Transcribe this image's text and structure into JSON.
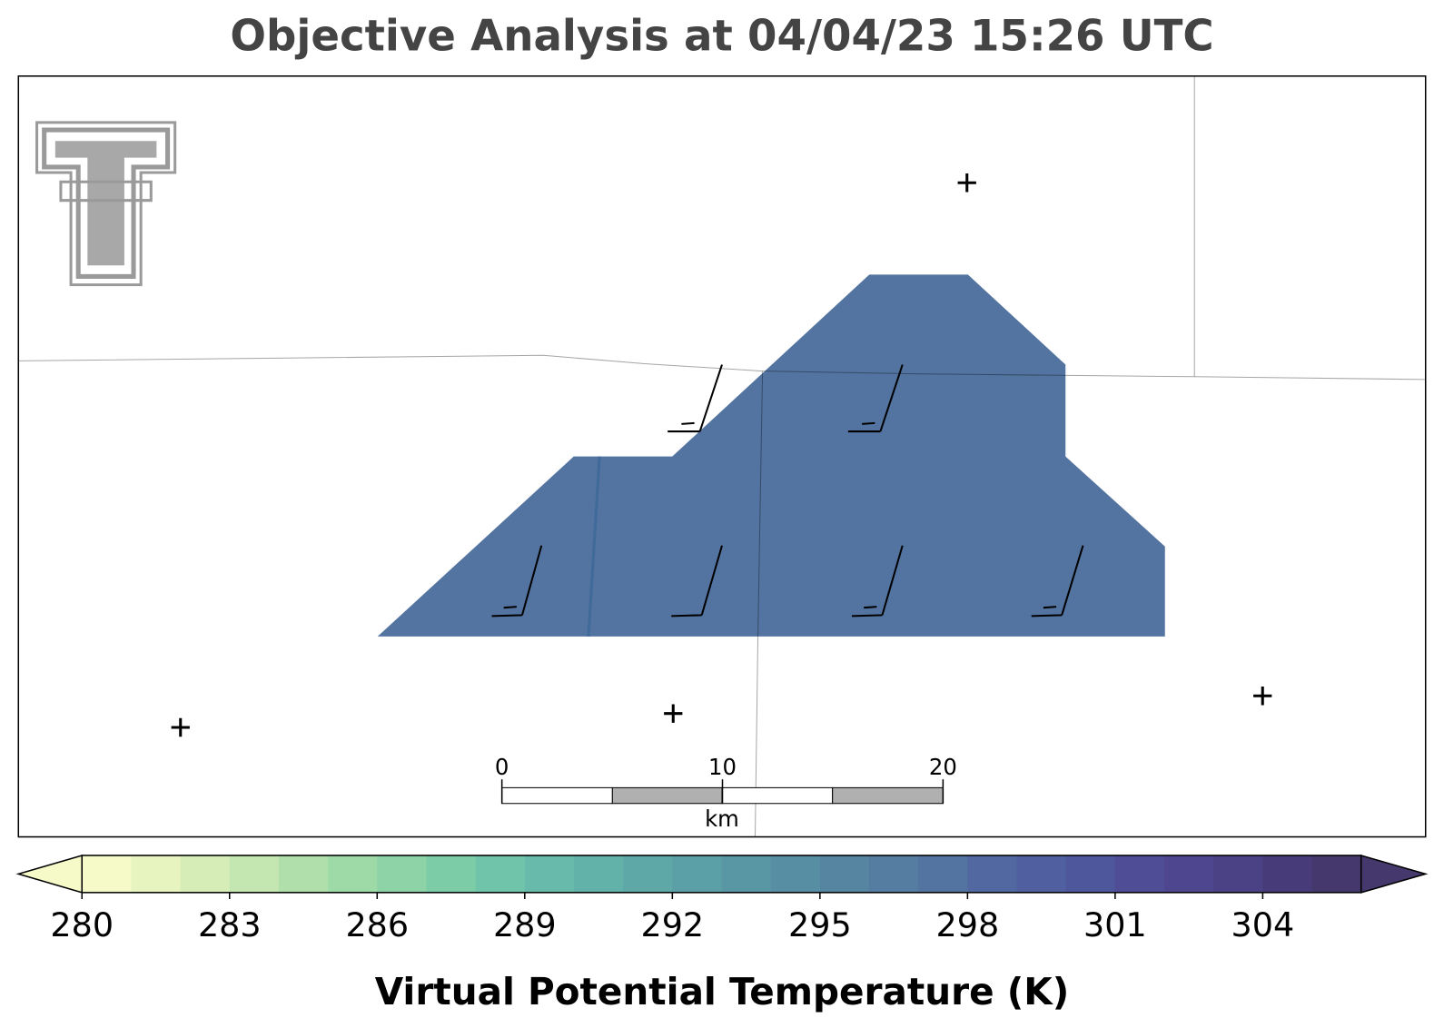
{
  "title": "Objective Analysis at 04/04/23 15:26 UTC",
  "analysis": {
    "value": 297
  },
  "colorbar": {
    "label": "Virtual Potential Temperature (K)",
    "vmin": 280,
    "vmax": 306,
    "ticks": [
      280,
      283,
      286,
      289,
      292,
      295,
      298,
      301,
      304
    ],
    "extend": "both",
    "colors": [
      "#f6f9c8",
      "#e8f4c0",
      "#d6edb8",
      "#c4e6b0",
      "#b0dfab",
      "#9ed9a8",
      "#8dd3a7",
      "#7ccca8",
      "#70c4a9",
      "#68bbaa",
      "#62b2a9",
      "#5ea9a8",
      "#5ba0a7",
      "#5997a5",
      "#588ea4",
      "#5685a2",
      "#557ca1",
      "#5373a0",
      "#5169a0",
      "#4f5f9f",
      "#4e569c",
      "#504d97",
      "#4e4790",
      "#4b4185",
      "#473c79",
      "#45386c"
    ]
  },
  "scale_bar": {
    "xlim": [
      0,
      20
    ],
    "ticks": [
      0,
      10,
      20
    ],
    "unit": "km"
  }
}
